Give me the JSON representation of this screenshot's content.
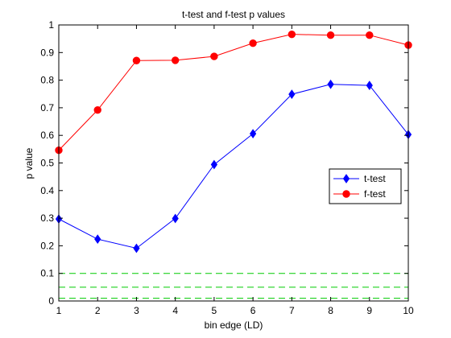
{
  "chart_data": {
    "type": "line",
    "title": "t-test and f-test p values",
    "xlabel": "bin edge (LD)",
    "ylabel": "p value",
    "xlim": [
      1,
      10
    ],
    "ylim": [
      0,
      1
    ],
    "xticks": [
      1,
      2,
      3,
      4,
      5,
      6,
      7,
      8,
      9,
      10
    ],
    "yticks": [
      0,
      0.1,
      0.2,
      0.3,
      0.4,
      0.5,
      0.6,
      0.7,
      0.8,
      0.9,
      1
    ],
    "x": [
      1,
      2,
      3,
      4,
      5,
      6,
      7,
      8,
      9,
      10
    ],
    "grid": false,
    "legend_position": "right",
    "series": [
      {
        "name": "t-test",
        "marker": "diamond",
        "color": "#0000ff",
        "values": [
          0.297,
          0.224,
          0.191,
          0.299,
          0.494,
          0.606,
          0.749,
          0.785,
          0.781,
          0.603
        ]
      },
      {
        "name": "f-test",
        "marker": "circle",
        "color": "#ff0000",
        "values": [
          0.546,
          0.692,
          0.871,
          0.872,
          0.886,
          0.934,
          0.966,
          0.963,
          0.963,
          0.927
        ]
      }
    ],
    "reference_lines": [
      {
        "y": 0.1,
        "color": "#00cc00",
        "style": "dashed"
      },
      {
        "y": 0.05,
        "color": "#00cc00",
        "style": "dashed"
      },
      {
        "y": 0.01,
        "color": "#00cc00",
        "style": "dashed"
      }
    ]
  }
}
